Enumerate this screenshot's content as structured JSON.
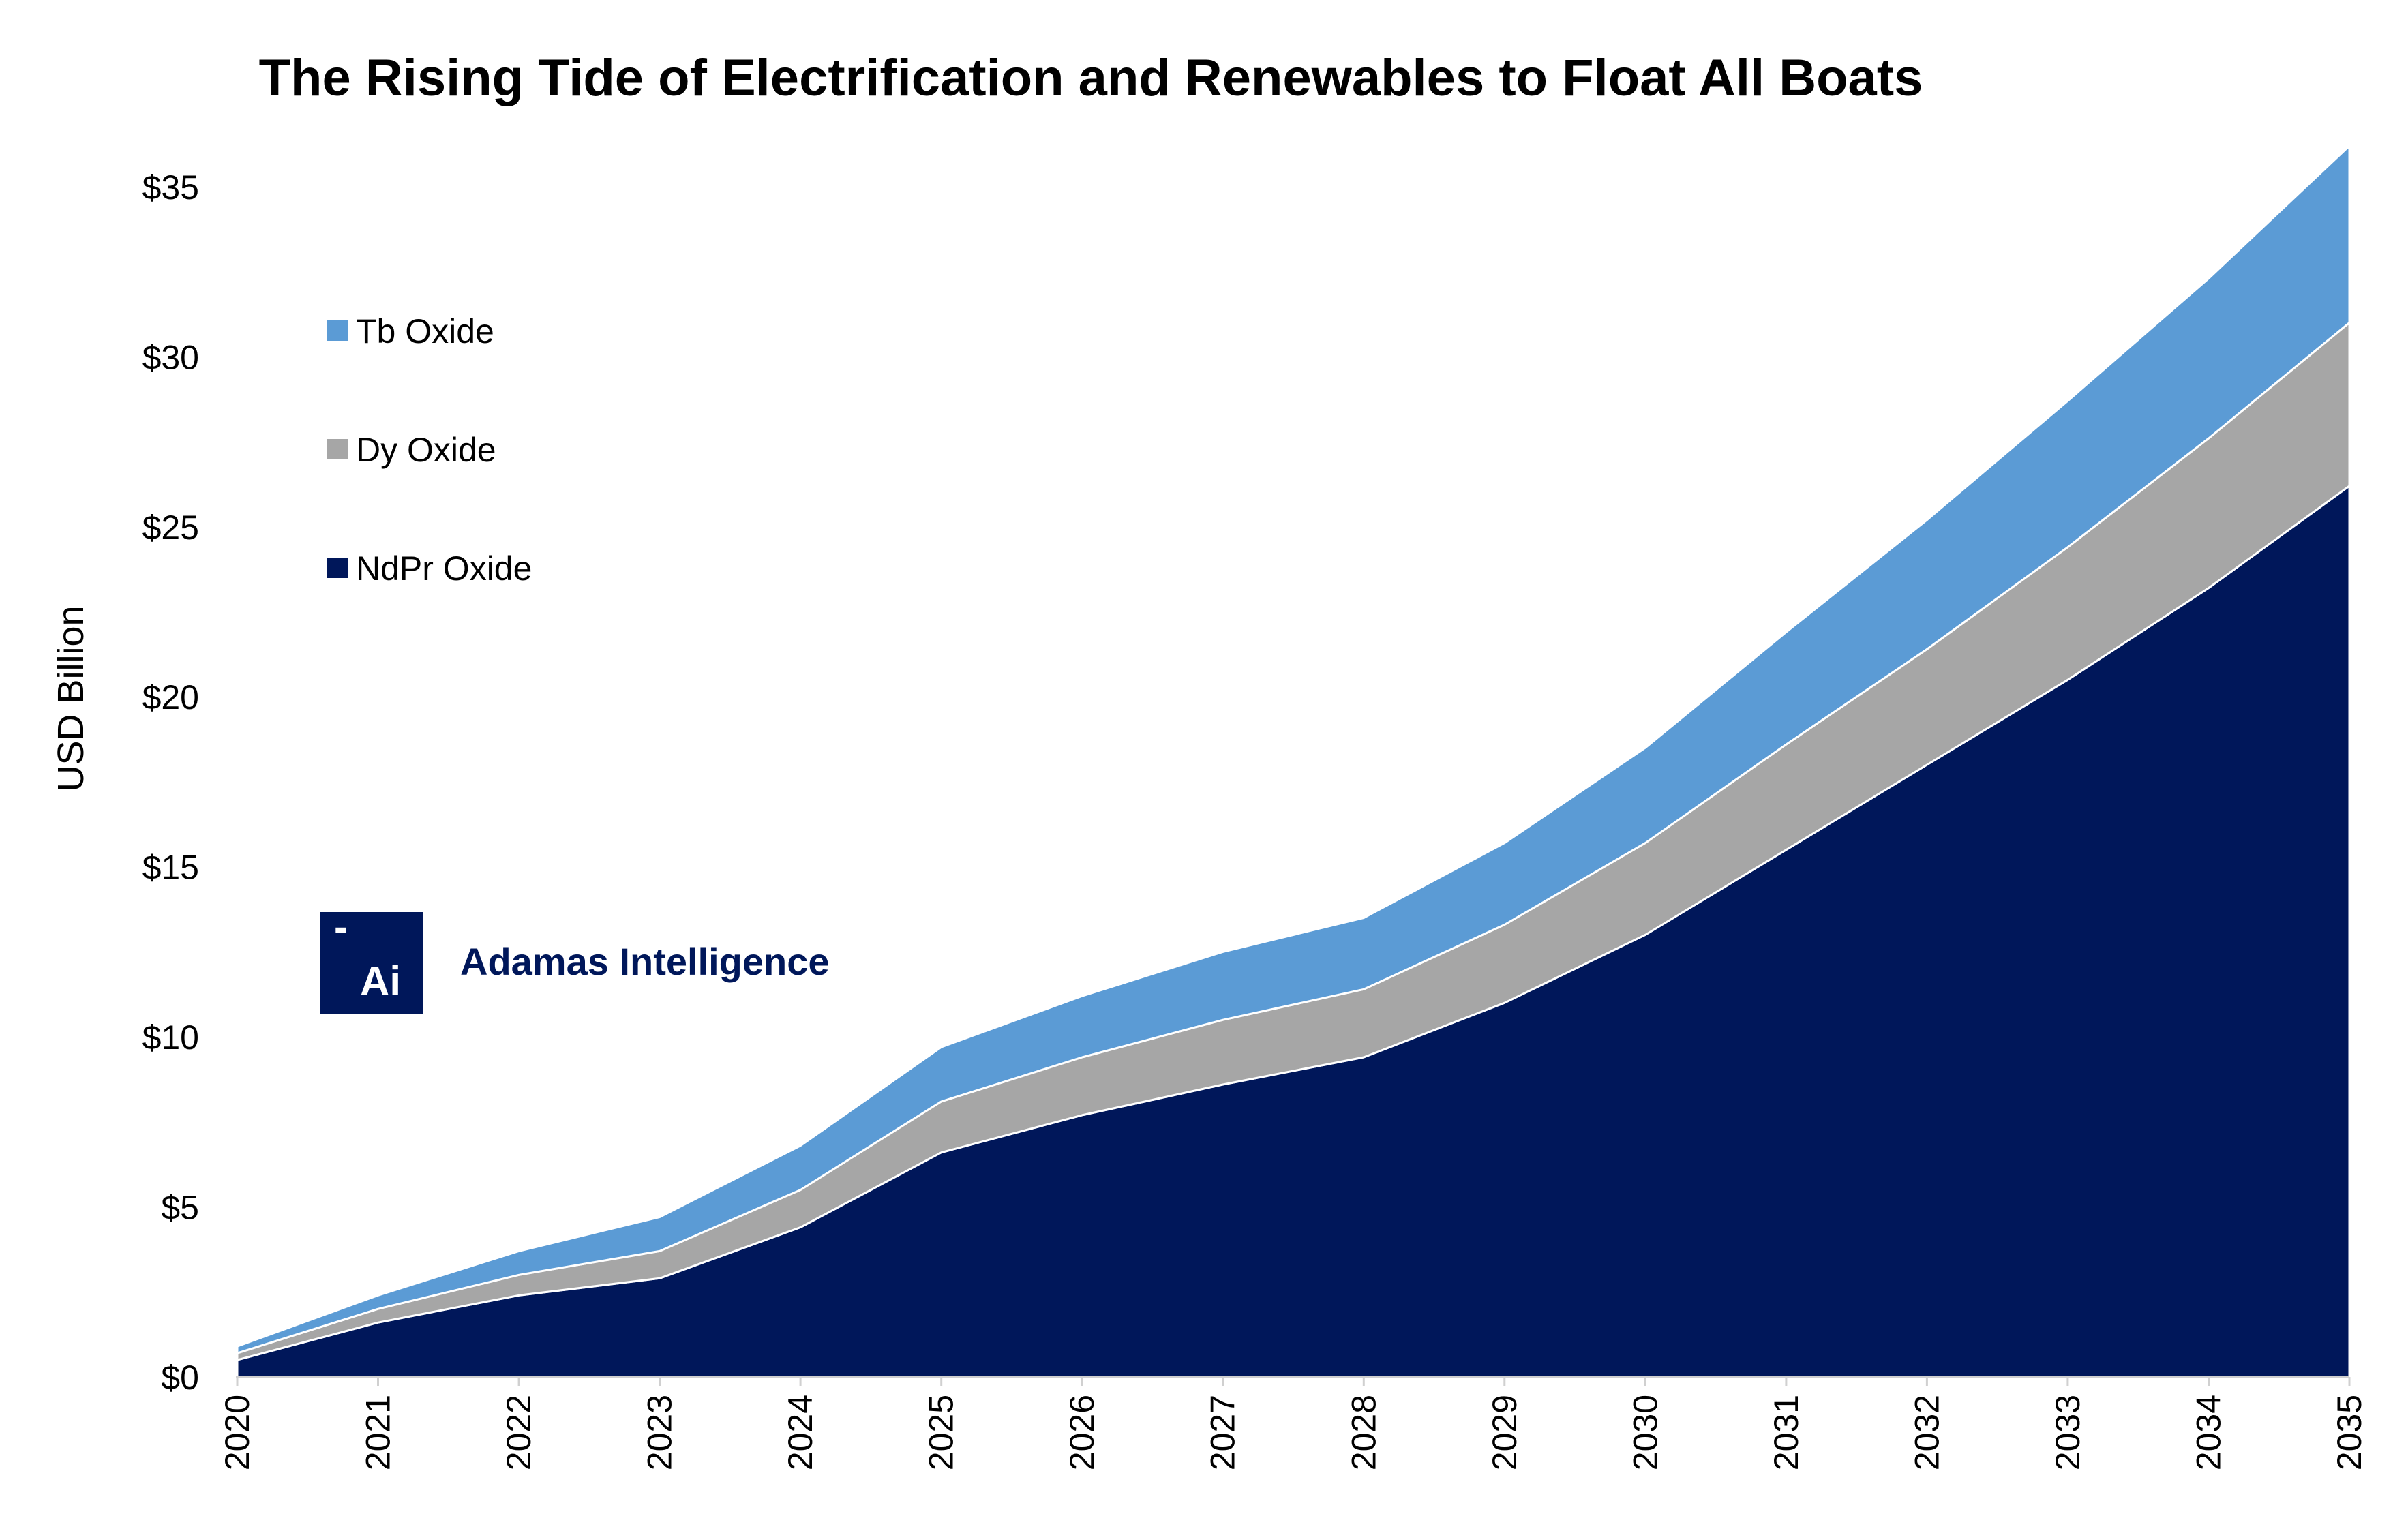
{
  "chart_data": {
    "type": "area",
    "stacked": true,
    "title": "The Rising Tide of Electrification and Renewables to Float All Boats",
    "ylabel": "USD Billion",
    "xlabel": "",
    "ylim": [
      0,
      36
    ],
    "y_ticks": [
      0,
      5,
      10,
      15,
      20,
      25,
      30,
      35
    ],
    "y_tick_labels": [
      "$0",
      "$5",
      "$10",
      "$15",
      "$20",
      "$25",
      "$30",
      "$35"
    ],
    "categories": [
      "2020",
      "2021",
      "2022",
      "2023",
      "2024",
      "2025",
      "2026",
      "2027",
      "2028",
      "2029",
      "2030",
      "2031",
      "2032",
      "2033",
      "2034",
      "2035"
    ],
    "legend_position": "upper-left",
    "series": [
      {
        "name": "NdPr Oxide",
        "color": "#00175a",
        "values": [
          0.5,
          1.6,
          2.4,
          2.9,
          4.4,
          6.6,
          7.7,
          8.6,
          9.4,
          11.0,
          13.0,
          15.5,
          18.0,
          20.5,
          23.2,
          26.2
        ]
      },
      {
        "name": "Dy Oxide",
        "color": "#a6a6a6",
        "values": [
          0.2,
          0.4,
          0.6,
          0.8,
          1.1,
          1.5,
          1.7,
          1.9,
          2.0,
          2.3,
          2.7,
          3.1,
          3.4,
          3.9,
          4.4,
          4.8
        ]
      },
      {
        "name": "Tb Oxide",
        "color": "#5b9bd5",
        "values": [
          0.2,
          0.4,
          0.7,
          1.0,
          1.3,
          1.6,
          1.8,
          2.0,
          2.1,
          2.4,
          2.8,
          3.3,
          3.8,
          4.3,
          4.7,
          5.2
        ]
      }
    ]
  },
  "legend": [
    {
      "label": "Tb Oxide",
      "color": "#5b9bd5"
    },
    {
      "label": "Dy Oxide",
      "color": "#a6a6a6"
    },
    {
      "label": "NdPr Oxide",
      "color": "#00175a"
    }
  ],
  "logo": {
    "glyph": "Ai",
    "dash": "-",
    "name": "Adamas Intelligence",
    "color": "#00175a"
  }
}
